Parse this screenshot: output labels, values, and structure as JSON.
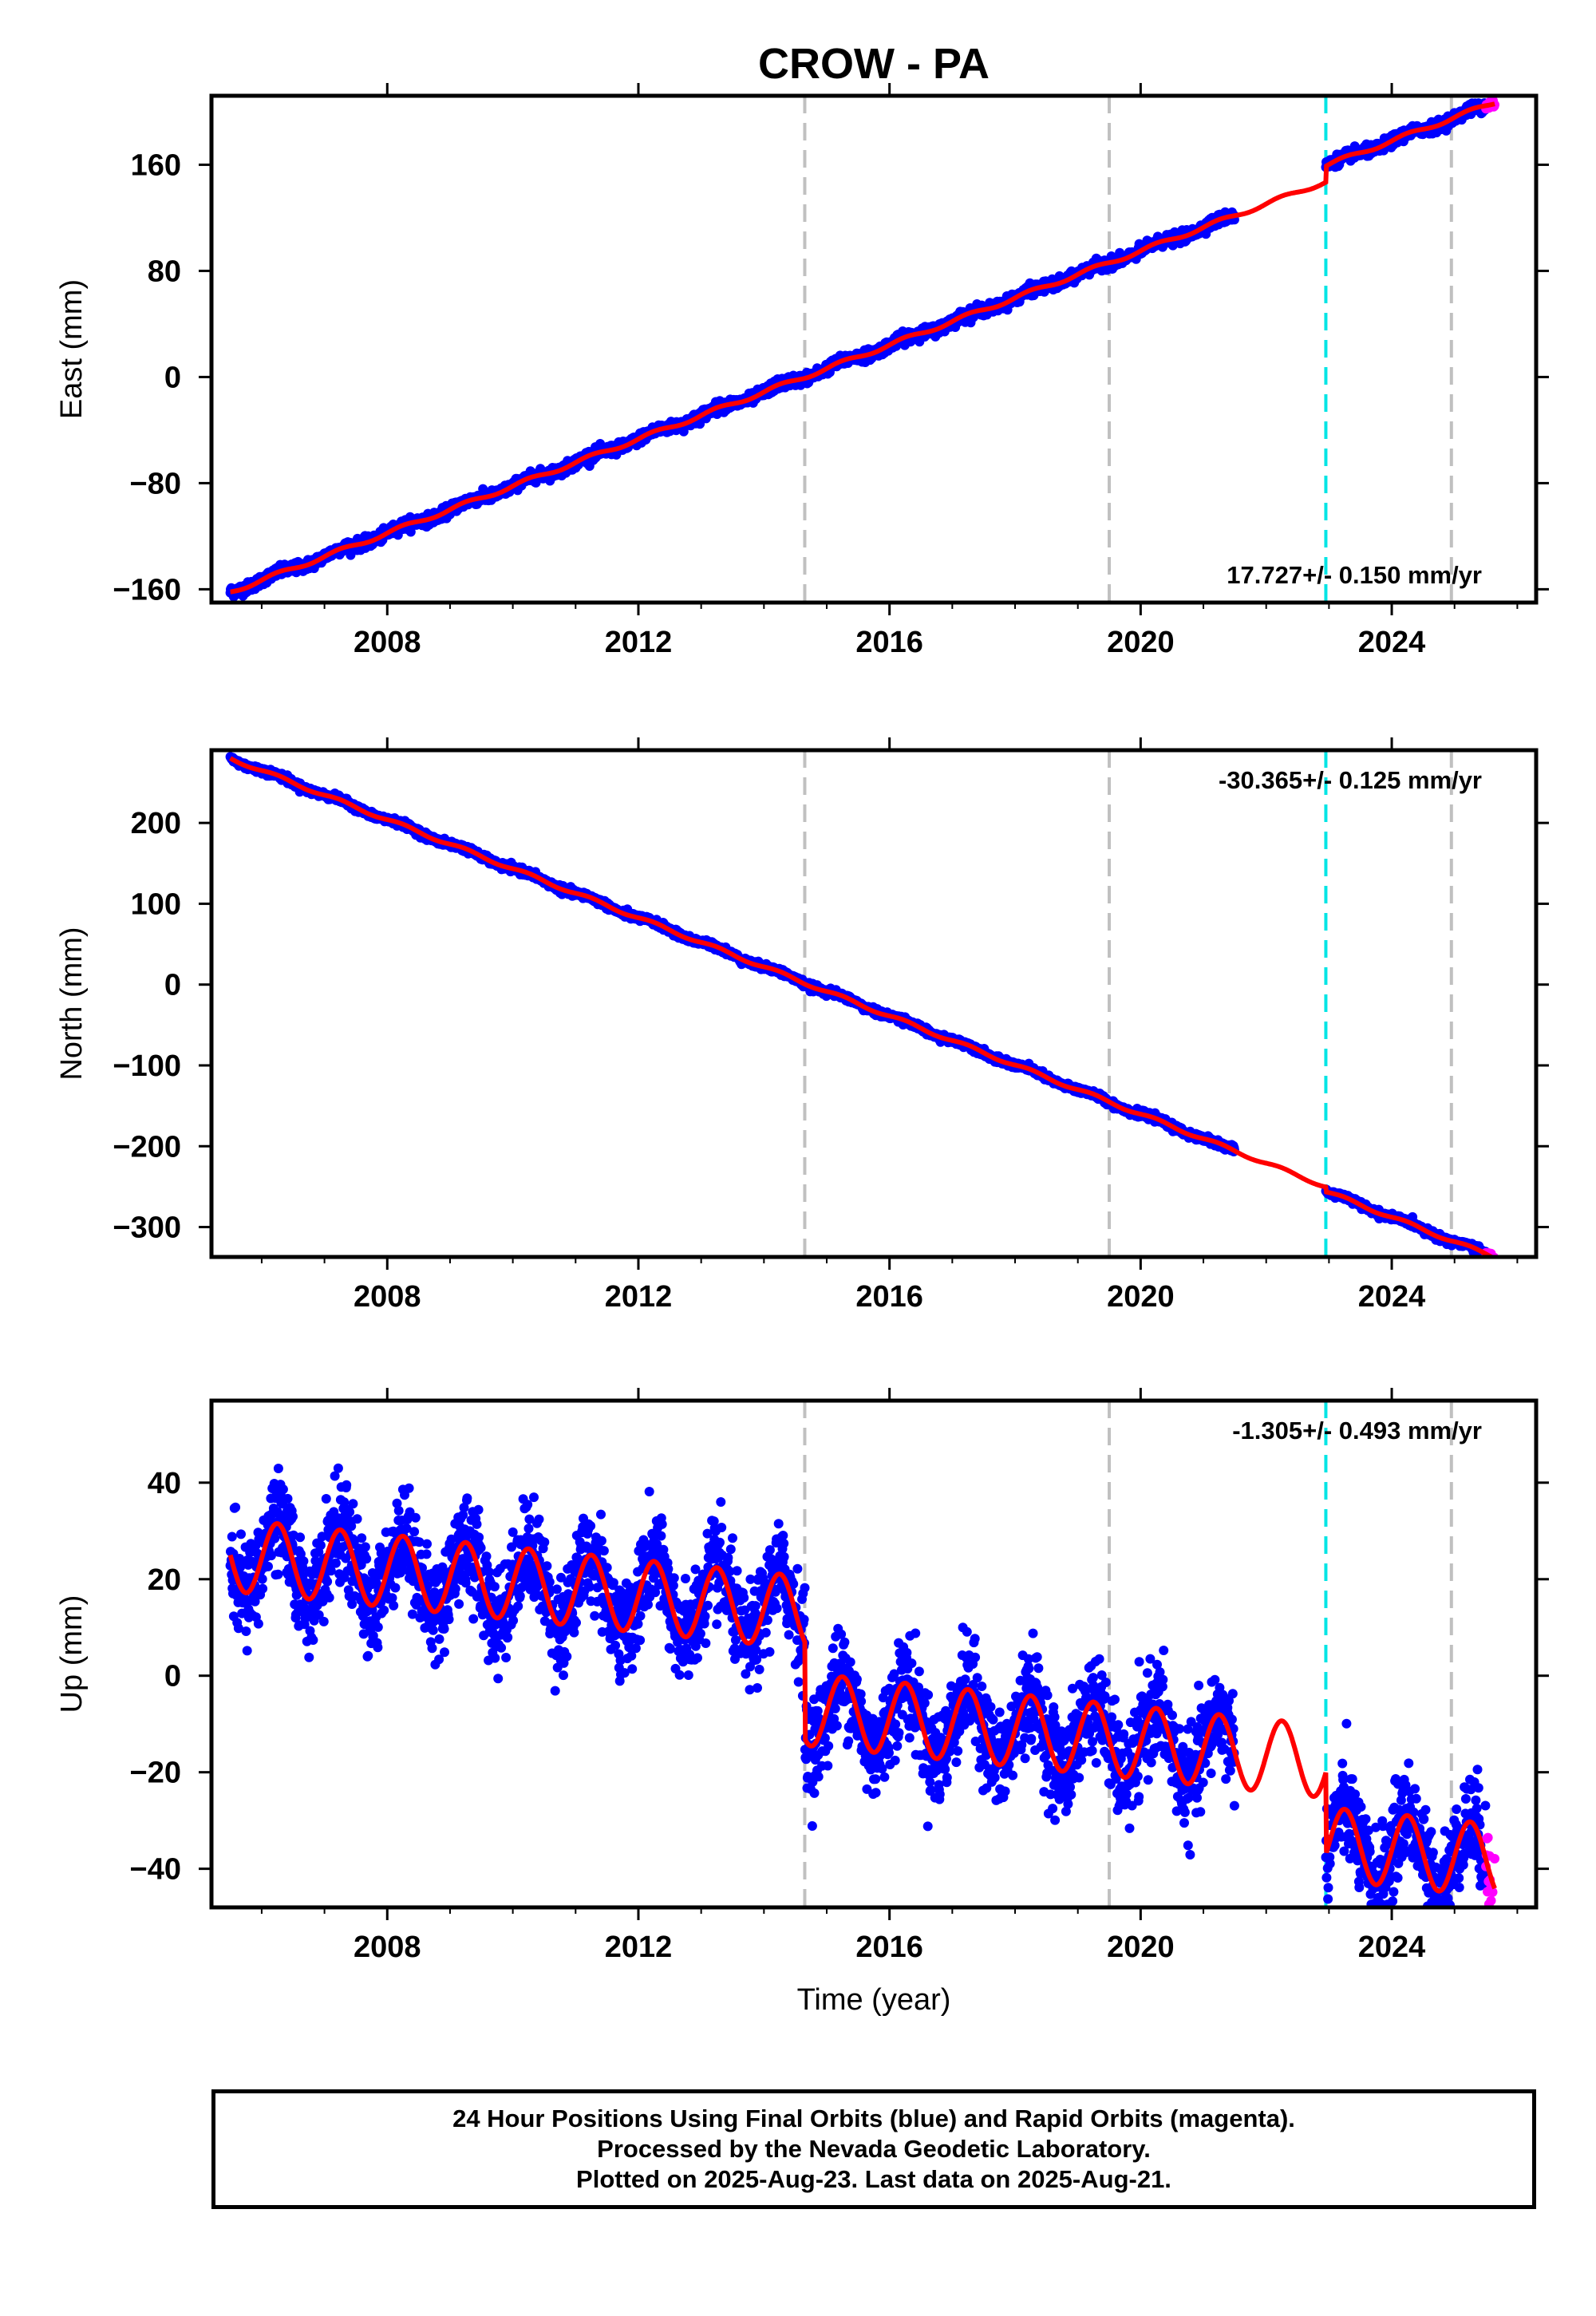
{
  "title": "CROW - PA",
  "xlabel": "Time (year)",
  "footer": {
    "line1": "24 Hour Positions Using Final Orbits (blue) and Rapid Orbits (magenta).",
    "line2": "Processed by the Nevada Geodetic Laboratory.",
    "line3": "Plotted on 2025-Aug-23. Last data on 2025-Aug-21."
  },
  "colors": {
    "final_orbits": "#0000ff",
    "rapid_orbits": "#ff00ff",
    "model_fit": "#ff0000",
    "equipment_change": "#c0c0c0",
    "earthquake": "#00e5e5"
  },
  "chart_data": [
    {
      "type": "scatter",
      "panel": "east",
      "ylabel": "East (mm)",
      "xlim": [
        2005.2,
        2026.3
      ],
      "ylim": [
        -170,
        212
      ],
      "xticks": [
        "2008",
        "2012",
        "2016",
        "2020",
        "2024"
      ],
      "yticks": [
        "160",
        "80",
        "0",
        "−80",
        "−160"
      ],
      "ytick_values": [
        160,
        80,
        0,
        -80,
        -160
      ],
      "velocity_label": "17.727+/- 0.150 mm/yr",
      "velocity_label_position": "bottom-right",
      "rate_mm_per_yr": 17.727,
      "offsets": [
        {
          "year": 2022.95,
          "size_mm": 12
        }
      ],
      "gap": [
        2021.5,
        2022.95
      ],
      "anchor": {
        "year": 2005.5,
        "value": -162
      },
      "seasonal_amp": 1.5,
      "noise_mm": 2.0,
      "series": [
        {
          "name": "Final Orbits",
          "x_range": [
            2005.5,
            2025.5
          ]
        },
        {
          "name": "Rapid Orbits",
          "x_range": [
            2025.5,
            2025.64
          ]
        },
        {
          "name": "Model",
          "x_range": [
            2005.5,
            2025.64
          ]
        }
      ]
    },
    {
      "type": "scatter",
      "panel": "north",
      "ylabel": "North (mm)",
      "xlim": [
        2005.2,
        2026.3
      ],
      "ylim": [
        -337,
        290
      ],
      "xticks": [
        "2008",
        "2012",
        "2016",
        "2020",
        "2024"
      ],
      "yticks": [
        "200",
        "100",
        "0",
        "−100",
        "−200",
        "−300"
      ],
      "ytick_values": [
        200,
        100,
        0,
        -100,
        -200,
        -300
      ],
      "velocity_label": "-30.365+/- 0.125 mm/yr",
      "velocity_label_position": "top-right",
      "rate_mm_per_yr": -30.365,
      "offsets": [
        {
          "year": 2022.95,
          "size_mm": -6
        }
      ],
      "gap": [
        2021.5,
        2022.95
      ],
      "anchor": {
        "year": 2005.5,
        "value": 280
      },
      "seasonal_amp": 2.0,
      "noise_mm": 2.0,
      "series": [
        {
          "name": "Final Orbits",
          "x_range": [
            2005.5,
            2025.5
          ]
        },
        {
          "name": "Rapid Orbits",
          "x_range": [
            2025.5,
            2025.64
          ]
        },
        {
          "name": "Model",
          "x_range": [
            2005.5,
            2025.64
          ]
        }
      ]
    },
    {
      "type": "scatter",
      "panel": "up",
      "ylabel": "Up (mm)",
      "xlim": [
        2005.2,
        2026.3
      ],
      "ylim": [
        -48,
        57
      ],
      "xticks": [
        "2008",
        "2012",
        "2016",
        "2020",
        "2024"
      ],
      "yticks": [
        "40",
        "20",
        "0",
        "−20",
        "−40"
      ],
      "ytick_values": [
        40,
        20,
        0,
        -20,
        -40
      ],
      "velocity_label": "-1.305+/- 0.493 mm/yr",
      "velocity_label_position": "top-right",
      "rate_mm_per_yr": -1.305,
      "offsets": [
        {
          "year": 2014.65,
          "size_mm": -20
        },
        {
          "year": 2022.95,
          "size_mm": -17
        }
      ],
      "gap": [
        2021.5,
        2022.95
      ],
      "anchor": {
        "year": 2005.5,
        "value": 25
      },
      "seasonal_amp": 7.5,
      "noise_mm": 5.0,
      "series": [
        {
          "name": "Final Orbits",
          "x_range": [
            2005.5,
            2025.5
          ]
        },
        {
          "name": "Rapid Orbits",
          "x_range": [
            2025.5,
            2025.64
          ]
        },
        {
          "name": "Model",
          "x_range": [
            2005.5,
            2025.64
          ]
        }
      ]
    }
  ],
  "event_lines": [
    {
      "year": 2014.65,
      "kind": "equipment_change"
    },
    {
      "year": 2019.5,
      "kind": "equipment_change"
    },
    {
      "year": 2022.95,
      "kind": "earthquake"
    },
    {
      "year": 2024.95,
      "kind": "equipment_change"
    }
  ]
}
